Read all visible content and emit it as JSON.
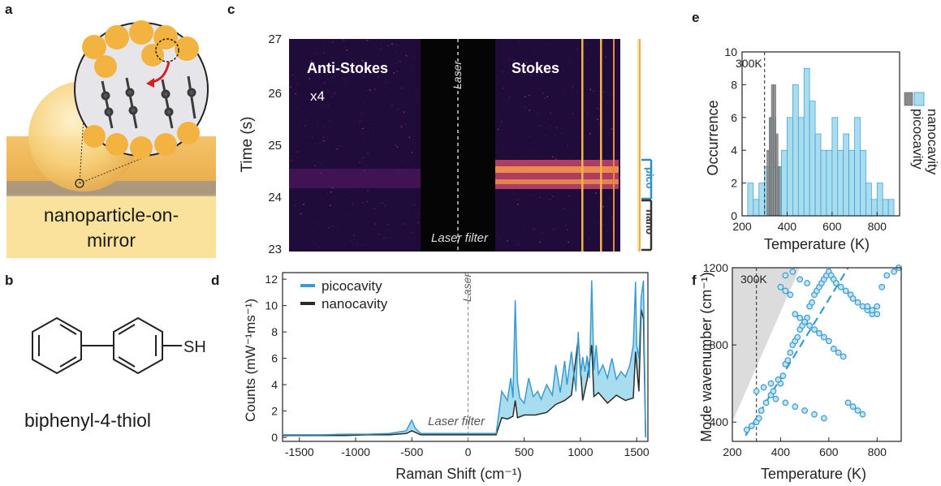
{
  "panels": {
    "a": {
      "label": "a",
      "caption_line1": "nanoparticle-on-",
      "caption_line2": "mirror"
    },
    "b": {
      "label": "b",
      "sh": "SH",
      "caption": "biphenyl-4-thiol"
    },
    "c": {
      "label": "c",
      "ylabel": "Time (s)",
      "yticks": [
        "23",
        "24",
        "25",
        "26",
        "27"
      ],
      "anti_stokes": "Anti-Stokes",
      "x4": "x4",
      "laser": "Laser",
      "stokes": "Stokes",
      "laser_filter": "Laser filter",
      "pico": "pico",
      "nano": "nano"
    },
    "d": {
      "label": "d",
      "ylabel": "Counts (mW⁻¹ms⁻¹)",
      "xlabel": "Raman Shift (cm⁻¹)",
      "laser": "Laser",
      "laser_filter": "Laser filter",
      "legend": [
        "picocavity",
        "nanocavity"
      ]
    },
    "e": {
      "label": "e",
      "ylabel": "Occurrence",
      "xlabel": "Temperature (K)",
      "annotation": "300K",
      "legend": [
        "picocavity",
        "nanocavity"
      ]
    },
    "f": {
      "label": "f",
      "ylabel": "Mode wavenumber (cm⁻¹)",
      "xlabel": "Temperature (K)",
      "annotation": "300K"
    }
  },
  "colors": {
    "pico": "#3a9bd0",
    "pico_fill": "#a8dcef",
    "nano": "#2b2b2b",
    "nano_fill": "#8a8a8a",
    "gold": "#f3c35b"
  },
  "chart_data": [
    {
      "id": "d",
      "type": "line",
      "xlabel": "Raman Shift (cm⁻¹)",
      "ylabel": "Counts (mW⁻¹ms⁻¹)",
      "xlim": [
        -1650,
        1600
      ],
      "ylim": [
        -0.3,
        12.5
      ],
      "xticks": [
        -1500,
        -1000,
        -500,
        0,
        500,
        1000,
        1500
      ],
      "yticks": [
        0,
        2,
        4,
        6,
        8,
        10,
        12
      ],
      "series": [
        {
          "name": "picocavity",
          "x": [
            -1650,
            -1500,
            -1300,
            -1100,
            -900,
            -700,
            -550,
            -520,
            -500,
            -470,
            -420,
            250,
            300,
            350,
            380,
            400,
            420,
            440,
            460,
            500,
            540,
            580,
            620,
            650,
            700,
            750,
            780,
            820,
            860,
            880,
            920,
            960,
            980,
            1000,
            1020,
            1040,
            1060,
            1080,
            1100,
            1120,
            1140,
            1160,
            1200,
            1240,
            1280,
            1320,
            1360,
            1400,
            1440,
            1470,
            1490,
            1500,
            1520,
            1540,
            1560,
            1580
          ],
          "y": [
            0.2,
            0.2,
            0.2,
            0.25,
            0.25,
            0.3,
            0.5,
            1.0,
            1.3,
            0.7,
            0.3,
            0.3,
            3.5,
            2.8,
            4.5,
            3.0,
            10.4,
            4.2,
            3.0,
            2.6,
            4.5,
            3.1,
            3.5,
            2.9,
            4.0,
            3.2,
            5.5,
            3.4,
            5.8,
            4.0,
            6.5,
            3.5,
            8.0,
            4.6,
            6.1,
            5.0,
            6.2,
            4.5,
            11.9,
            5.1,
            7.0,
            4.8,
            5.5,
            4.5,
            6.0,
            4.4,
            5.0,
            4.6,
            5.5,
            7.0,
            11.8,
            7.0,
            6.0,
            10.6,
            11.9,
            0.0
          ]
        },
        {
          "name": "nanocavity",
          "x": [
            -1650,
            -1500,
            -1300,
            -1100,
            -900,
            -700,
            -550,
            -500,
            -420,
            250,
            300,
            350,
            400,
            420,
            440,
            500,
            600,
            700,
            780,
            860,
            920,
            980,
            1020,
            1060,
            1100,
            1120,
            1160,
            1240,
            1320,
            1400,
            1470,
            1490,
            1520,
            1540,
            1560,
            1580
          ],
          "y": [
            0.15,
            0.15,
            0.15,
            0.15,
            0.2,
            0.2,
            0.3,
            0.5,
            0.2,
            0.2,
            1.5,
            1.4,
            1.6,
            2.8,
            1.5,
            1.7,
            1.7,
            1.9,
            2.5,
            2.8,
            3.2,
            7.5,
            2.8,
            4.4,
            7.0,
            3.1,
            3.4,
            2.6,
            3.2,
            2.8,
            3.0,
            6.5,
            3.5,
            9.7,
            9.0,
            0.0
          ]
        }
      ]
    },
    {
      "id": "e",
      "type": "bar",
      "xlabel": "Temperature (K)",
      "ylabel": "Occurrence",
      "xlim": [
        200,
        900
      ],
      "ylim": [
        0,
        10
      ],
      "xticks": [
        200,
        400,
        600,
        800
      ],
      "yticks": [
        0,
        2,
        4,
        6,
        8,
        10
      ],
      "bin_width": 25,
      "series": [
        {
          "name": "picocavity",
          "bin_starts": [
            225,
            250,
            275,
            300,
            325,
            350,
            375,
            400,
            425,
            450,
            475,
            500,
            525,
            550,
            575,
            600,
            625,
            650,
            675,
            700,
            725,
            750,
            775,
            800,
            825,
            850
          ],
          "counts": [
            2,
            1,
            2,
            3,
            6,
            3,
            4,
            6,
            8,
            6,
            9,
            7,
            5,
            4,
            4,
            6,
            4,
            5,
            4,
            6,
            4,
            2,
            1,
            2,
            1,
            1
          ]
        },
        {
          "name": "nanocavity",
          "bin_starts": [
            310,
            320,
            330,
            340,
            350,
            360
          ],
          "counts": [
            4,
            6,
            8,
            8,
            5,
            3
          ]
        }
      ]
    },
    {
      "id": "f",
      "type": "scatter",
      "xlabel": "Temperature (K)",
      "ylabel": "Mode wavenumber (cm⁻¹)",
      "xlim": [
        200,
        900
      ],
      "ylim": [
        300,
        1200
      ],
      "xticks": [
        200,
        400,
        600,
        800
      ],
      "yticks": [
        400,
        800,
        1200
      ],
      "series": [
        {
          "name": "modes",
          "x": [
            260,
            280,
            300,
            310,
            320,
            340,
            360,
            370,
            380,
            400,
            410,
            420,
            430,
            440,
            450,
            460,
            470,
            480,
            490,
            500,
            510,
            520,
            530,
            540,
            550,
            560,
            570,
            580,
            590,
            600,
            610,
            620,
            630,
            650,
            670,
            690,
            700,
            720,
            740,
            760,
            780,
            800,
            820,
            840,
            870,
            890,
            300,
            330,
            360,
            390,
            420,
            450,
            480,
            510,
            400,
            420,
            440,
            460,
            480,
            500,
            520,
            540,
            560,
            580,
            600,
            620,
            640,
            660,
            680,
            700,
            720,
            740,
            760,
            780,
            800,
            420,
            460,
            500,
            540,
            580
          ],
          "y": [
            360,
            380,
            400,
            420,
            460,
            500,
            540,
            560,
            520,
            600,
            640,
            700,
            720,
            760,
            800,
            820,
            840,
            880,
            900,
            920,
            940,
            1000,
            1020,
            1060,
            1080,
            1100,
            1120,
            1140,
            1160,
            1180,
            1160,
            1140,
            1120,
            1100,
            1080,
            1060,
            1040,
            1020,
            1000,
            980,
            960,
            1000,
            1100,
            1160,
            1180,
            1200,
            560,
            580,
            600,
            620,
            1160,
            1180,
            1140,
            1120,
            1100,
            1080,
            1060,
            960,
            940,
            920,
            900,
            880,
            860,
            840,
            820,
            780,
            760,
            740,
            500,
            480,
            460,
            440,
            1000,
            980,
            960,
            500,
            480,
            460,
            440,
            420
          ]
        }
      ]
    }
  ]
}
